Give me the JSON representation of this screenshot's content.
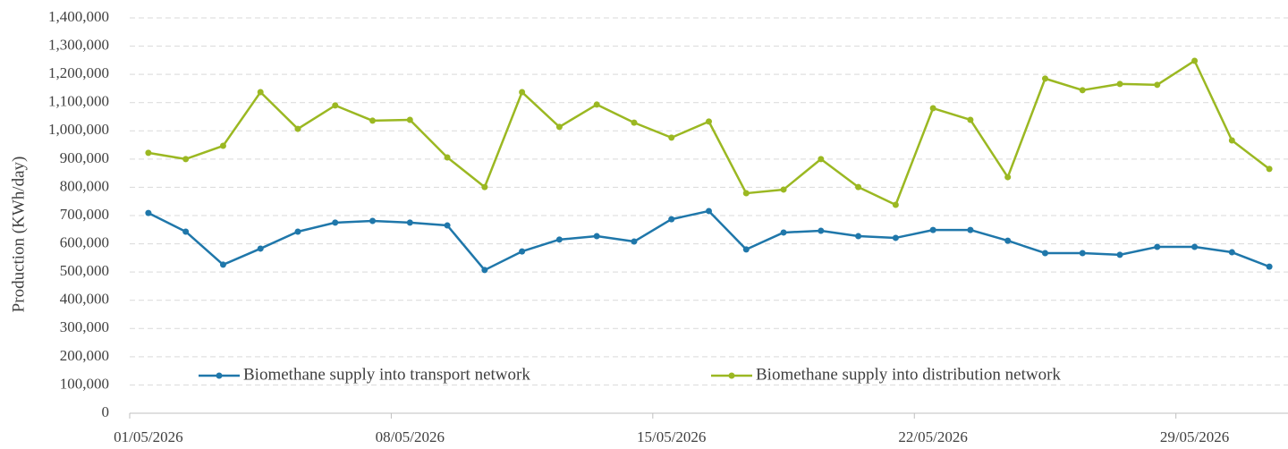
{
  "chart_data": {
    "type": "line",
    "y_label": "Production (KWh/day)",
    "categories": [
      "01/05/2026",
      null,
      null,
      null,
      null,
      null,
      null,
      "08/05/2026",
      null,
      null,
      null,
      null,
      null,
      null,
      "15/05/2026",
      null,
      null,
      null,
      null,
      null,
      null,
      "22/05/2026",
      null,
      null,
      null,
      null,
      null,
      null,
      "29/05/2026",
      null,
      null
    ],
    "series": [
      {
        "name": "Biomethane supply into transport network",
        "color": "#1f77aa",
        "values": [
          709000,
          643000,
          526000,
          583000,
          643000,
          675000,
          681000,
          675000,
          665000,
          507000,
          573000,
          615000,
          627000,
          608000,
          687000,
          716000,
          580000,
          640000,
          646000,
          627000,
          621000,
          649000,
          649000,
          611000,
          567000,
          567000,
          561000,
          589000,
          589000,
          570000,
          519000
        ]
      },
      {
        "name": "Biomethane supply into distribution network",
        "color": "#9bb822",
        "values": [
          922000,
          900000,
          947000,
          1137000,
          1007000,
          1090000,
          1036000,
          1039000,
          906000,
          801000,
          1137000,
          1014000,
          1093000,
          1029000,
          976000,
          1033000,
          779000,
          792000,
          900000,
          801000,
          738000,
          1080000,
          1039000,
          836000,
          1185000,
          1144000,
          1166000,
          1163000,
          1248000,
          966000,
          865000
        ]
      }
    ],
    "ylim": [
      0,
      1400000
    ],
    "yticks": [
      0,
      {
        "value": 100000,
        "label": "100,000"
      },
      {
        "value": 200000,
        "label": "200,000"
      },
      {
        "value": 300000,
        "label": "300,000"
      },
      {
        "value": 400000,
        "label": "400,000"
      },
      {
        "value": 500000,
        "label": "500,000"
      },
      {
        "value": 600000,
        "label": "600,000"
      },
      {
        "value": 700000,
        "label": "700,000"
      },
      {
        "value": 800000,
        "label": "800,000"
      },
      {
        "value": 900000,
        "label": "900,000"
      },
      {
        "value": 1000000,
        "label": "1,000,000"
      },
      {
        "value": 1100000,
        "label": "1,100,000"
      },
      {
        "value": 1200000,
        "label": "1,200,000"
      },
      {
        "value": 1300000,
        "label": "1,300,000"
      },
      {
        "value": 1400000,
        "label": "1,400,000"
      }
    ],
    "grid": true,
    "legend": "bottom"
  }
}
